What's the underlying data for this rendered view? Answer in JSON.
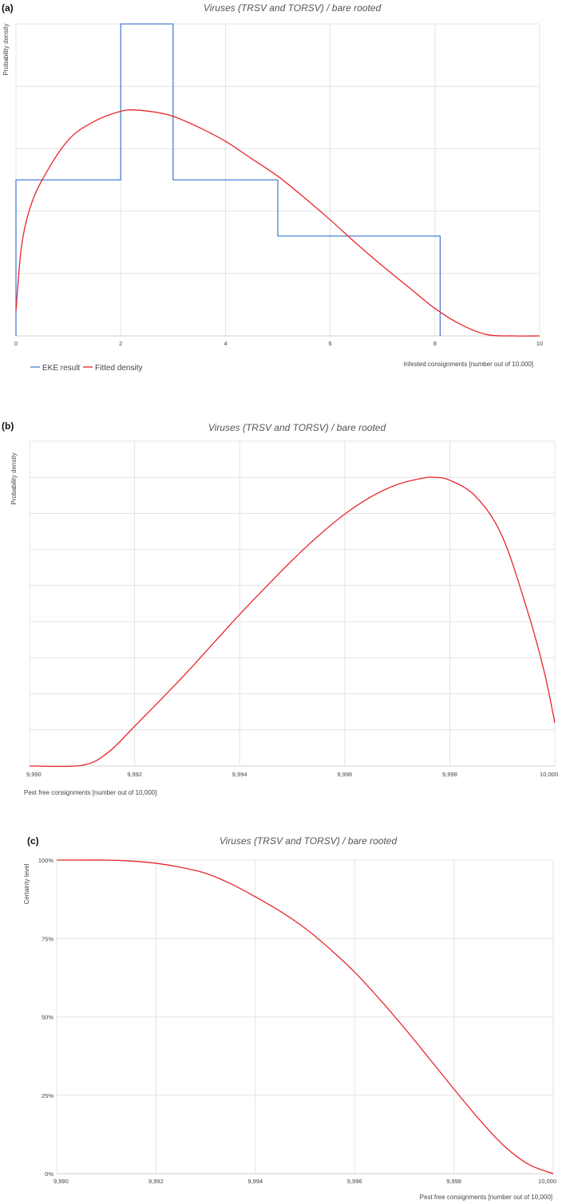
{
  "chart_data": [
    {
      "panel": "(a)",
      "type": "line",
      "title": "Viruses (TRSV and TORSV) / bare rooted",
      "xlabel": "Infested consignments [number out of 10,000]",
      "ylabel": "Probability density",
      "xlim": [
        0,
        10
      ],
      "ylim": [
        0,
        0.25
      ],
      "xticks": [
        0,
        2,
        4,
        6,
        8,
        10
      ],
      "xtick_labels": [
        "0",
        "2",
        "4",
        "6",
        "8",
        "10"
      ],
      "yticks": [
        0.05,
        0.1,
        0.15,
        0.2,
        0.25
      ],
      "grid": true,
      "legend": "bottom-left",
      "series": [
        {
          "name": "EKE result",
          "color": "#4a7fd4",
          "style": "step",
          "x": [
            0,
            0,
            2,
            2,
            3,
            3,
            5,
            5,
            8.1,
            8.1
          ],
          "y": [
            0,
            0.125,
            0.125,
            0.25,
            0.25,
            0.125,
            0.125,
            0.08,
            0.08,
            0
          ]
        },
        {
          "name": "Fitted density",
          "color": "#e8262b",
          "style": "line",
          "x": [
            0,
            0.1,
            0.25,
            0.5,
            1,
            1.5,
            2,
            2.3,
            2.7,
            3,
            3.5,
            4,
            4.5,
            5,
            5.5,
            6,
            6.5,
            7,
            7.5,
            8,
            8.5,
            9,
            9.5,
            10
          ],
          "y": [
            0.02,
            0.07,
            0.1,
            0.125,
            0.157,
            0.172,
            0.18,
            0.181,
            0.179,
            0.176,
            0.167,
            0.156,
            0.142,
            0.128,
            0.111,
            0.093,
            0.074,
            0.056,
            0.039,
            0.022,
            0.009,
            0.001,
            0,
            0
          ]
        }
      ]
    },
    {
      "panel": "(b)",
      "type": "line",
      "title": "Viruses (TRSV and TORSV) / bare rooted",
      "xlabel": "Pest free consignments [number out of 10,000]",
      "ylabel": "Probability density",
      "xlim": [
        9990,
        10000
      ],
      "ylim": [
        0,
        0.45
      ],
      "xticks": [
        9990,
        9992,
        9994,
        9996,
        9998,
        10000
      ],
      "xtick_labels": [
        "9,990",
        "9,992",
        "9,994",
        "9,996",
        "9,998",
        "10,000"
      ],
      "yticks": [
        0.05,
        0.1,
        0.15,
        0.2,
        0.25,
        0.3,
        0.35,
        0.4,
        0.45
      ],
      "grid": true,
      "series": [
        {
          "color": "#e8262b",
          "x": [
            9990,
            9991,
            9991.5,
            9992,
            9992.5,
            9993,
            9993.5,
            9994,
            9994.5,
            9995,
            9995.5,
            9996,
            9996.5,
            9997,
            9997.5,
            9997.7,
            9998,
            9998.5,
            9999,
            9999.5,
            9999.8,
            10000
          ],
          "y": [
            0,
            0.001,
            0.019,
            0.055,
            0.092,
            0.13,
            0.17,
            0.21,
            0.248,
            0.285,
            0.319,
            0.349,
            0.373,
            0.39,
            0.399,
            0.4,
            0.396,
            0.373,
            0.318,
            0.21,
            0.13,
            0.06
          ]
        }
      ]
    },
    {
      "panel": "(c)",
      "type": "line",
      "title": "Viruses (TRSV and TORSV) / bare rooted",
      "xlabel": "Pest free consignments [number out of 10,000]",
      "ylabel": "Certainty level",
      "xlim": [
        9990,
        10000
      ],
      "ylim": [
        0,
        1
      ],
      "xticks": [
        9990,
        9992,
        9994,
        9996,
        9998,
        10000
      ],
      "xtick_labels": [
        "9,990",
        "9,992",
        "9,994",
        "9,996",
        "9,998",
        "10,000"
      ],
      "yticks": [
        0,
        0.25,
        0.5,
        0.75,
        1
      ],
      "ytick_labels": [
        "0%",
        "25%",
        "50%",
        "75%",
        "100%"
      ],
      "grid": true,
      "series": [
        {
          "color": "#e8262b",
          "x": [
            9990,
            9991,
            9991.5,
            9992,
            9992.5,
            9993,
            9993.5,
            9994,
            9994.5,
            9995,
            9995.5,
            9996,
            9996.5,
            9997,
            9997.5,
            9998,
            9998.5,
            9999,
            9999.5,
            10000
          ],
          "y": [
            1,
            1,
            0.997,
            0.99,
            0.977,
            0.958,
            0.925,
            0.883,
            0.837,
            0.783,
            0.717,
            0.643,
            0.557,
            0.465,
            0.368,
            0.27,
            0.175,
            0.09,
            0.03,
            0
          ]
        }
      ]
    }
  ]
}
